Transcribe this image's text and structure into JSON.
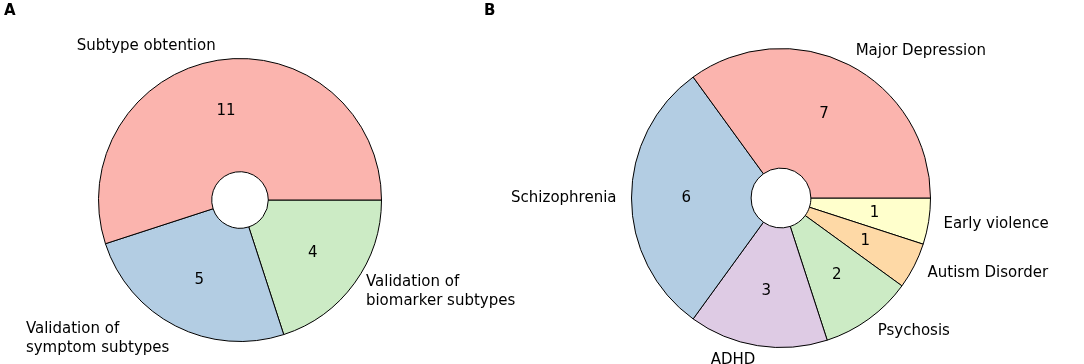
{
  "chart_data": [
    {
      "type": "donut",
      "title": "A",
      "categories": [
        "Subtype obtention",
        "Validation of symptom subtypes",
        "Validation of biomarker subtypes"
      ],
      "values": [
        11,
        5,
        4
      ],
      "colors": [
        "#fbb4ae",
        "#b3cde3",
        "#ccebc5"
      ],
      "data_labels": true,
      "legend": false
    },
    {
      "type": "donut",
      "title": "B",
      "categories": [
        "Major Depression",
        "Schizophrenia",
        "ADHD",
        "Psychosis",
        "Autism Disorder",
        "Early violence"
      ],
      "values": [
        7,
        6,
        3,
        2,
        1,
        1
      ],
      "colors": [
        "#fbb4ae",
        "#b3cde3",
        "#decbe4",
        "#ccebc5",
        "#fed9a6",
        "#ffffcc"
      ],
      "data_labels": true,
      "legend": false
    }
  ]
}
